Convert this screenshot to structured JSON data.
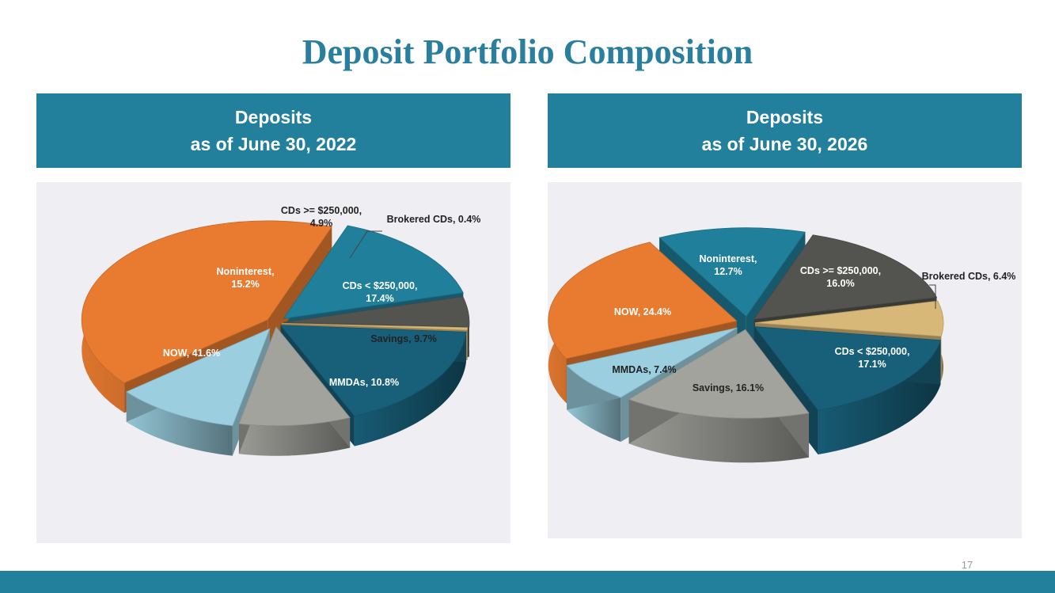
{
  "title": "Deposit Portfolio Composition",
  "page_number": "17",
  "colors": {
    "accent": "#23809c",
    "title": "#2a7f9e",
    "panel_bg": "#eeeef3"
  },
  "chart_data": [
    {
      "type": "pie",
      "title_line1": "Deposits",
      "title_line2": "as of June 30, 2022",
      "slices": [
        {
          "name": "NOW",
          "value": 41.6,
          "label_lines": [
            "NOW, 41.6%"
          ],
          "color": "#e87b30"
        },
        {
          "name": "Noninterest",
          "value": 15.2,
          "label_lines": [
            "Noninterest,",
            "15.2%"
          ],
          "color": "#207f9a"
        },
        {
          "name": "CDs >= $250,000",
          "value": 4.9,
          "label_lines": [
            "CDs >= $250,000,",
            "4.9%"
          ],
          "color": "#53534f"
        },
        {
          "name": "Brokered CDs",
          "value": 0.4,
          "label_lines": [
            "Brokered CDs, 0.4%"
          ],
          "color": "#d8b878"
        },
        {
          "name": "CDs < $250,000",
          "value": 17.4,
          "label_lines": [
            "CDs < $250,000,",
            "17.4%"
          ],
          "color": "#18607a"
        },
        {
          "name": "Savings",
          "value": 9.7,
          "label_lines": [
            "Savings, 9.7%"
          ],
          "color": "#a3a39e"
        },
        {
          "name": "MMDAs",
          "value": 10.8,
          "label_lines": [
            "MMDAs, 10.8%"
          ],
          "color": "#9bcfe0"
        }
      ]
    },
    {
      "type": "pie",
      "title_line1": "Deposits",
      "title_line2": "as of June 30, 2026",
      "slices": [
        {
          "name": "NOW",
          "value": 24.4,
          "label_lines": [
            "NOW, 24.4%"
          ],
          "color": "#e87b30"
        },
        {
          "name": "Noninterest",
          "value": 12.7,
          "label_lines": [
            "Noninterest,",
            "12.7%"
          ],
          "color": "#207f9a"
        },
        {
          "name": "CDs >= $250,000",
          "value": 16.0,
          "label_lines": [
            "CDs >= $250,000,",
            "16.0%"
          ],
          "color": "#53534f"
        },
        {
          "name": "Brokered CDs",
          "value": 6.4,
          "label_lines": [
            "Brokered CDs, 6.4%"
          ],
          "color": "#d8b878"
        },
        {
          "name": "CDs < $250,000",
          "value": 17.1,
          "label_lines": [
            "CDs < $250,000,",
            "17.1%"
          ],
          "color": "#18607a"
        },
        {
          "name": "Savings",
          "value": 16.1,
          "label_lines": [
            "Savings, 16.1%"
          ],
          "color": "#a3a39e"
        },
        {
          "name": "MMDAs",
          "value": 7.4,
          "label_lines": [
            "MMDAs, 7.4%"
          ],
          "color": "#9bcfe0"
        }
      ]
    }
  ]
}
